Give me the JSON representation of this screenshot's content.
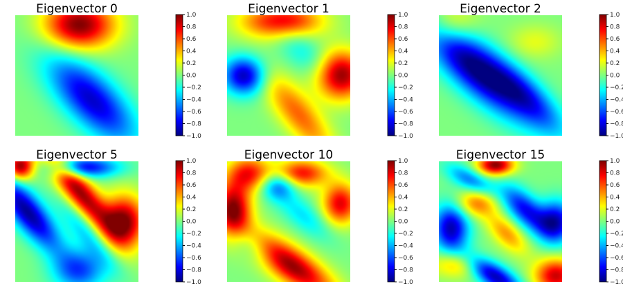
{
  "chart_data": [
    {
      "type": "heatmap",
      "title": "Eigenvector 0",
      "colormap": "jet",
      "clim": [
        -1.0,
        1.0
      ],
      "colorbar_ticks": [
        "1.0",
        "0.8",
        "0.6",
        "0.4",
        "0.2",
        "0.0",
        "−0.2",
        "−0.4",
        "−0.6",
        "−0.8",
        "−1.0"
      ],
      "blobs": [
        {
          "cx": 0.52,
          "cy": 0.08,
          "sx": 0.2,
          "sy": 0.14,
          "amp": 1.0
        },
        {
          "cx": 0.62,
          "cy": 0.7,
          "sx": 0.33,
          "sy": 0.14,
          "amp": -0.85,
          "rot": -0.8
        }
      ]
    },
    {
      "type": "heatmap",
      "title": "Eigenvector 1",
      "colormap": "jet",
      "clim": [
        -1.0,
        1.0
      ],
      "colorbar_ticks": [
        "1.0",
        "0.8",
        "0.6",
        "0.4",
        "0.2",
        "0.0",
        "−0.2",
        "−0.4",
        "−0.6",
        "−0.8",
        "−1.0"
      ],
      "blobs": [
        {
          "cx": 0.44,
          "cy": 0.05,
          "sx": 0.22,
          "sy": 0.1,
          "amp": 0.85
        },
        {
          "cx": 0.14,
          "cy": 0.5,
          "sx": 0.12,
          "sy": 0.11,
          "amp": -0.9
        },
        {
          "cx": 0.92,
          "cy": 0.5,
          "sx": 0.14,
          "sy": 0.14,
          "amp": 1.0
        },
        {
          "cx": 0.58,
          "cy": 0.82,
          "sx": 0.3,
          "sy": 0.1,
          "amp": 0.55,
          "rot": -0.9
        },
        {
          "cx": 0.62,
          "cy": 0.3,
          "sx": 0.25,
          "sy": 0.1,
          "amp": -0.25,
          "rot": -0.8
        }
      ]
    },
    {
      "type": "heatmap",
      "title": "Eigenvector 2",
      "colormap": "jet",
      "clim": [
        -1.0,
        1.0
      ],
      "colorbar_ticks": [
        "1.0",
        "0.8",
        "0.6",
        "0.4",
        "0.2",
        "0.0",
        "−0.2",
        "−0.4",
        "−0.6",
        "−0.8",
        "−1.0"
      ],
      "blobs": [
        {
          "cx": 0.3,
          "cy": 0.45,
          "sx": 0.4,
          "sy": 0.13,
          "amp": -1.0,
          "rot": -0.75
        },
        {
          "cx": 0.72,
          "cy": 0.68,
          "sx": 0.3,
          "sy": 0.1,
          "amp": -0.55,
          "rot": -0.8
        },
        {
          "cx": 0.08,
          "cy": 0.08,
          "sx": 0.15,
          "sy": 0.12,
          "amp": 0.35
        },
        {
          "cx": 0.78,
          "cy": 0.22,
          "sx": 0.15,
          "sy": 0.1,
          "amp": 0.2
        }
      ]
    },
    {
      "type": "heatmap",
      "title": "Eigenvector 5",
      "colormap": "jet",
      "clim": [
        -1.0,
        1.0
      ],
      "colorbar_ticks": [
        "1.0",
        "0.8",
        "0.6",
        "0.4",
        "0.2",
        "0.0",
        "−0.2",
        "−0.4",
        "−0.6",
        "−0.8",
        "−1.0"
      ],
      "blobs": [
        {
          "cx": 0.04,
          "cy": 0.04,
          "sx": 0.08,
          "sy": 0.08,
          "amp": 1.0
        },
        {
          "cx": 0.1,
          "cy": 0.42,
          "sx": 0.28,
          "sy": 0.09,
          "amp": -0.95,
          "rot": -0.9
        },
        {
          "cx": 0.52,
          "cy": 0.25,
          "sx": 0.3,
          "sy": 0.08,
          "amp": 0.95,
          "rot": -0.9
        },
        {
          "cx": 0.88,
          "cy": 0.5,
          "sx": 0.12,
          "sy": 0.15,
          "amp": 1.0
        },
        {
          "cx": 0.55,
          "cy": 0.05,
          "sx": 0.2,
          "sy": 0.06,
          "amp": -0.8
        },
        {
          "cx": 0.58,
          "cy": 0.6,
          "sx": 0.25,
          "sy": 0.07,
          "amp": -0.35,
          "rot": -0.9
        },
        {
          "cx": 0.52,
          "cy": 0.9,
          "sx": 0.15,
          "sy": 0.12,
          "amp": -0.6
        }
      ]
    },
    {
      "type": "heatmap",
      "title": "Eigenvector 10",
      "colormap": "jet",
      "clim": [
        -1.0,
        1.0
      ],
      "colorbar_ticks": [
        "1.0",
        "0.8",
        "0.6",
        "0.4",
        "0.2",
        "0.0",
        "−0.2",
        "−0.4",
        "−0.6",
        "−0.8",
        "−1.0"
      ],
      "blobs": [
        {
          "cx": 0.05,
          "cy": 0.4,
          "sx": 0.1,
          "sy": 0.16,
          "amp": 1.0
        },
        {
          "cx": 0.5,
          "cy": 0.85,
          "sx": 0.3,
          "sy": 0.1,
          "amp": 1.0,
          "rot": -0.6
        },
        {
          "cx": 0.42,
          "cy": 0.2,
          "sx": 0.1,
          "sy": 0.08,
          "amp": -0.55
        },
        {
          "cx": 0.18,
          "cy": 0.1,
          "sx": 0.12,
          "sy": 0.1,
          "amp": 0.7
        },
        {
          "cx": 0.6,
          "cy": 0.1,
          "sx": 0.15,
          "sy": 0.08,
          "amp": 0.75
        },
        {
          "cx": 0.92,
          "cy": 0.35,
          "sx": 0.1,
          "sy": 0.12,
          "amp": 0.8
        },
        {
          "cx": 0.62,
          "cy": 0.45,
          "sx": 0.2,
          "sy": 0.08,
          "amp": -0.3,
          "rot": -0.7
        },
        {
          "cx": 0.2,
          "cy": 0.7,
          "sx": 0.18,
          "sy": 0.08,
          "amp": -0.35,
          "rot": -0.6
        }
      ]
    },
    {
      "type": "heatmap",
      "title": "Eigenvector 15",
      "colormap": "jet",
      "clim": [
        -1.0,
        1.0
      ],
      "colorbar_ticks": [
        "1.0",
        "0.8",
        "0.6",
        "0.4",
        "0.2",
        "0.0",
        "−0.2",
        "−0.4",
        "−0.6",
        "−0.8",
        "−1.0"
      ],
      "blobs": [
        {
          "cx": 0.46,
          "cy": 0.03,
          "sx": 0.1,
          "sy": 0.06,
          "amp": 1.0
        },
        {
          "cx": 0.1,
          "cy": 0.55,
          "sx": 0.1,
          "sy": 0.14,
          "amp": -0.9
        },
        {
          "cx": 0.7,
          "cy": 0.4,
          "sx": 0.18,
          "sy": 0.08,
          "amp": -0.75,
          "rot": -0.8
        },
        {
          "cx": 0.95,
          "cy": 0.5,
          "sx": 0.1,
          "sy": 0.12,
          "amp": -0.85
        },
        {
          "cx": 0.45,
          "cy": 0.95,
          "sx": 0.2,
          "sy": 0.07,
          "amp": -0.9,
          "rot": -0.6
        },
        {
          "cx": 0.95,
          "cy": 0.95,
          "sx": 0.12,
          "sy": 0.1,
          "amp": 0.85
        },
        {
          "cx": 0.3,
          "cy": 0.35,
          "sx": 0.12,
          "sy": 0.08,
          "amp": 0.5
        },
        {
          "cx": 0.25,
          "cy": 0.15,
          "sx": 0.15,
          "sy": 0.06,
          "amp": -0.5,
          "rot": -0.5
        },
        {
          "cx": 0.55,
          "cy": 0.6,
          "sx": 0.15,
          "sy": 0.07,
          "amp": 0.45,
          "rot": -0.8
        },
        {
          "cx": 0.15,
          "cy": 0.85,
          "sx": 0.15,
          "sy": 0.08,
          "amp": 0.4
        }
      ]
    }
  ]
}
